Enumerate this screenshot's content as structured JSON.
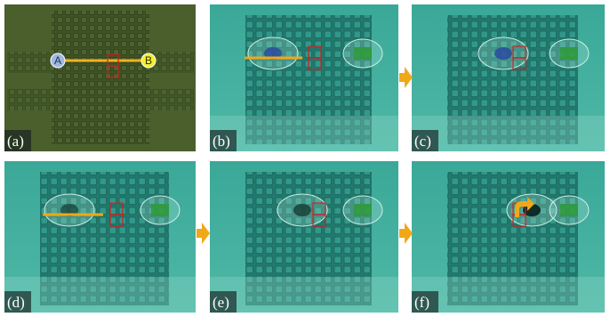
{
  "panels": [
    {
      "label": "(a)"
    },
    {
      "label": "(b)"
    },
    {
      "label": "(c)"
    },
    {
      "label": "(d)"
    },
    {
      "label": "(e)"
    },
    {
      "label": "(f)"
    }
  ],
  "markers": {
    "start": "A",
    "end": "B"
  }
}
